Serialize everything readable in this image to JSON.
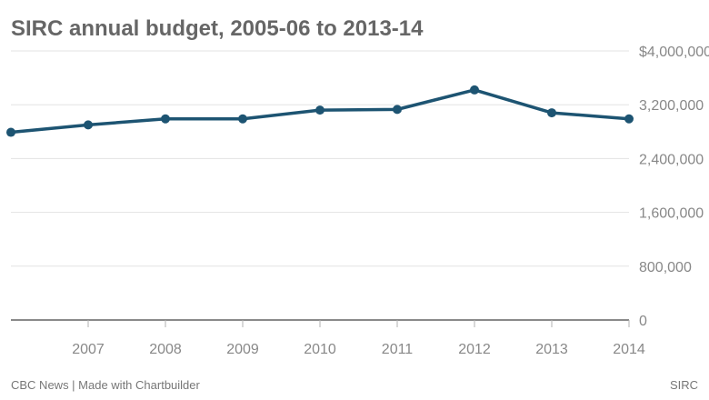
{
  "chart_data": {
    "type": "line",
    "title": "SIRC annual budget, 2005-06 to 2013-14",
    "x": [
      2006,
      2007,
      2008,
      2009,
      2010,
      2011,
      2012,
      2013,
      2014
    ],
    "x_tick_labels": [
      "2007",
      "2008",
      "2009",
      "2010",
      "2011",
      "2012",
      "2013",
      "2014"
    ],
    "y_tick_labels": [
      "0",
      "800,000",
      "1,600,000",
      "2,400,000",
      "3,200,000",
      "$4,000,000"
    ],
    "series": [
      {
        "values": [
          2790000,
          2900000,
          2990000,
          2990000,
          3120000,
          3130000,
          3420000,
          3080000,
          2990000
        ]
      }
    ],
    "xlim": [
      2006,
      2014
    ],
    "ylim": [
      0,
      4000000
    ],
    "y_axis_side": "right",
    "grid": true,
    "legend": "none",
    "colors": {
      "line": "#1d5472",
      "grid": "#e3e3e3",
      "baseline": "#8a8a8a",
      "tick_text": "#888888",
      "title": "#666666"
    }
  },
  "footer": {
    "credit": "CBC News | Made with Chartbuilder",
    "source": "SIRC"
  }
}
